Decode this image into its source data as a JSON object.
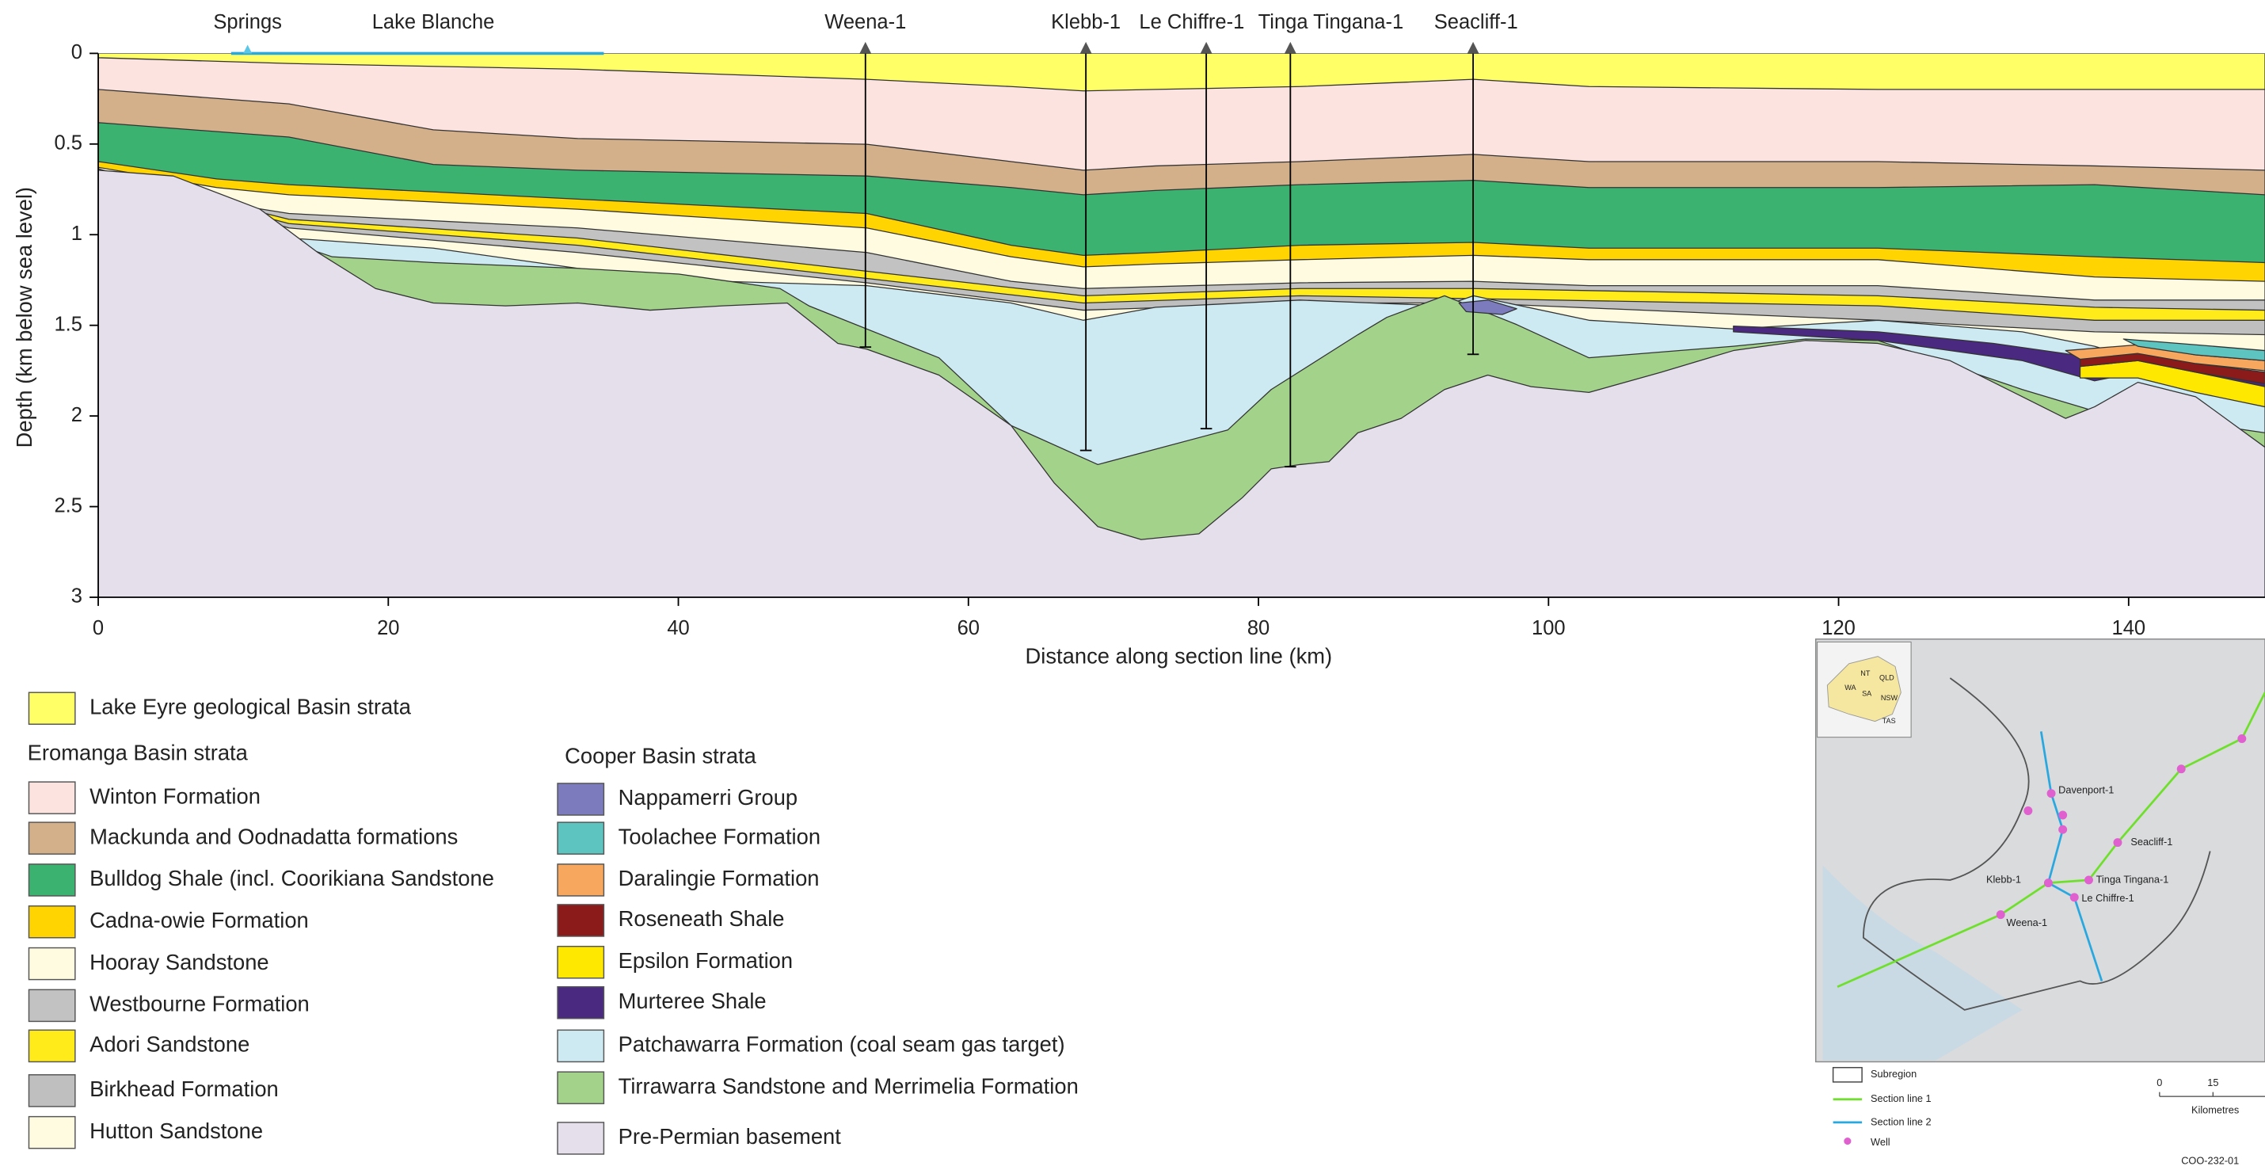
{
  "section": {
    "x_label": "Distance along  section line (km)",
    "y_label": "Depth (km below sea level)",
    "xlim": [
      0,
      150
    ],
    "ylim": [
      0,
      3
    ],
    "xticks": [
      0,
      20,
      40,
      60,
      80,
      100,
      120,
      140
    ],
    "yticks": [
      0,
      0.5,
      1,
      1.5,
      2,
      2.5,
      3
    ],
    "surface_labels": [
      {
        "label": "Springs",
        "x_km": 10.3
      },
      {
        "label": "Lake Blanche",
        "x_km": 23.1
      }
    ],
    "wells": [
      {
        "name": "Weena-1",
        "x_km": 52.9,
        "td_km": 1.62
      },
      {
        "name": "Klebb-1",
        "x_km": 68.1,
        "td_km": 2.19
      },
      {
        "name": "Le Chiffre-1",
        "x_km": 76.4,
        "td_km": 2.07
      },
      {
        "name": "Tinga  Tingana-1",
        "x_km": 82.2,
        "td_km": 2.28
      },
      {
        "name": "Seacliff-1",
        "x_km": 94.8,
        "td_km": 1.66
      }
    ]
  },
  "legend": {
    "lake_eyre": {
      "label": "Lake Eyre geological Basin strata",
      "color": "#ffff66"
    },
    "eromanga": {
      "title": "Eromanga Basin strata",
      "items": [
        {
          "label": "Winton Formation",
          "color": "#fce3df"
        },
        {
          "label": "Mackunda and Oodnadatta formations",
          "color": "#d3b08a"
        },
        {
          "label": "Bulldog Shale (incl. Coorikiana Sandstone",
          "color": "#3bb270"
        },
        {
          "label": "Cadna-owie Formation",
          "color": "#ffd400"
        },
        {
          "label": "Hooray Sandstone",
          "color": "#fffbe1"
        },
        {
          "label": "Westbourne Formation",
          "color": "#c2c2c2"
        },
        {
          "label": "Adori Sandstone",
          "color": "#ffea1a"
        },
        {
          "label": "Birkhead Formation",
          "color": "#bfbfbf"
        },
        {
          "label": "Hutton Sandstone",
          "color": "#fffbe1"
        }
      ]
    },
    "cooper": {
      "title": "Cooper Basin strata",
      "items": [
        {
          "label": "Nappamerri Group",
          "color": "#7b7bbd"
        },
        {
          "label": "Toolachee Formation",
          "color": "#5dc4c0"
        },
        {
          "label": "Daralingie Formation",
          "color": "#f7a85e"
        },
        {
          "label": "Roseneath Shale",
          "color": "#8b1a1a"
        },
        {
          "label": "Epsilon Formation",
          "color": "#ffe800"
        },
        {
          "label": "Murteree Shale",
          "color": "#4a2a80"
        },
        {
          "label": "Patchawarra Formation (coal seam gas target)",
          "color": "#cdeaf2"
        },
        {
          "label": "Tirrawarra Sandstone and Merrimelia Formation",
          "color": "#a3d38a"
        },
        {
          "label": "Pre-Permian basement",
          "color": "#e4dfea"
        }
      ]
    }
  },
  "map": {
    "states": [
      "WA",
      "NT",
      "QLD",
      "SA",
      "NSW",
      "TAS"
    ],
    "wells": [
      "Davenport-1",
      "Seacliff-1",
      "Klebb-1",
      "Tinga Tingana-1",
      "Le Chiffre-1",
      "Weena-1"
    ],
    "key": [
      "Subregion",
      "Section line 1",
      "Section line 2",
      "Well"
    ],
    "scale": {
      "start": "0",
      "mid": "15",
      "unit": "Kilometres"
    },
    "code": "COO-232-01"
  }
}
